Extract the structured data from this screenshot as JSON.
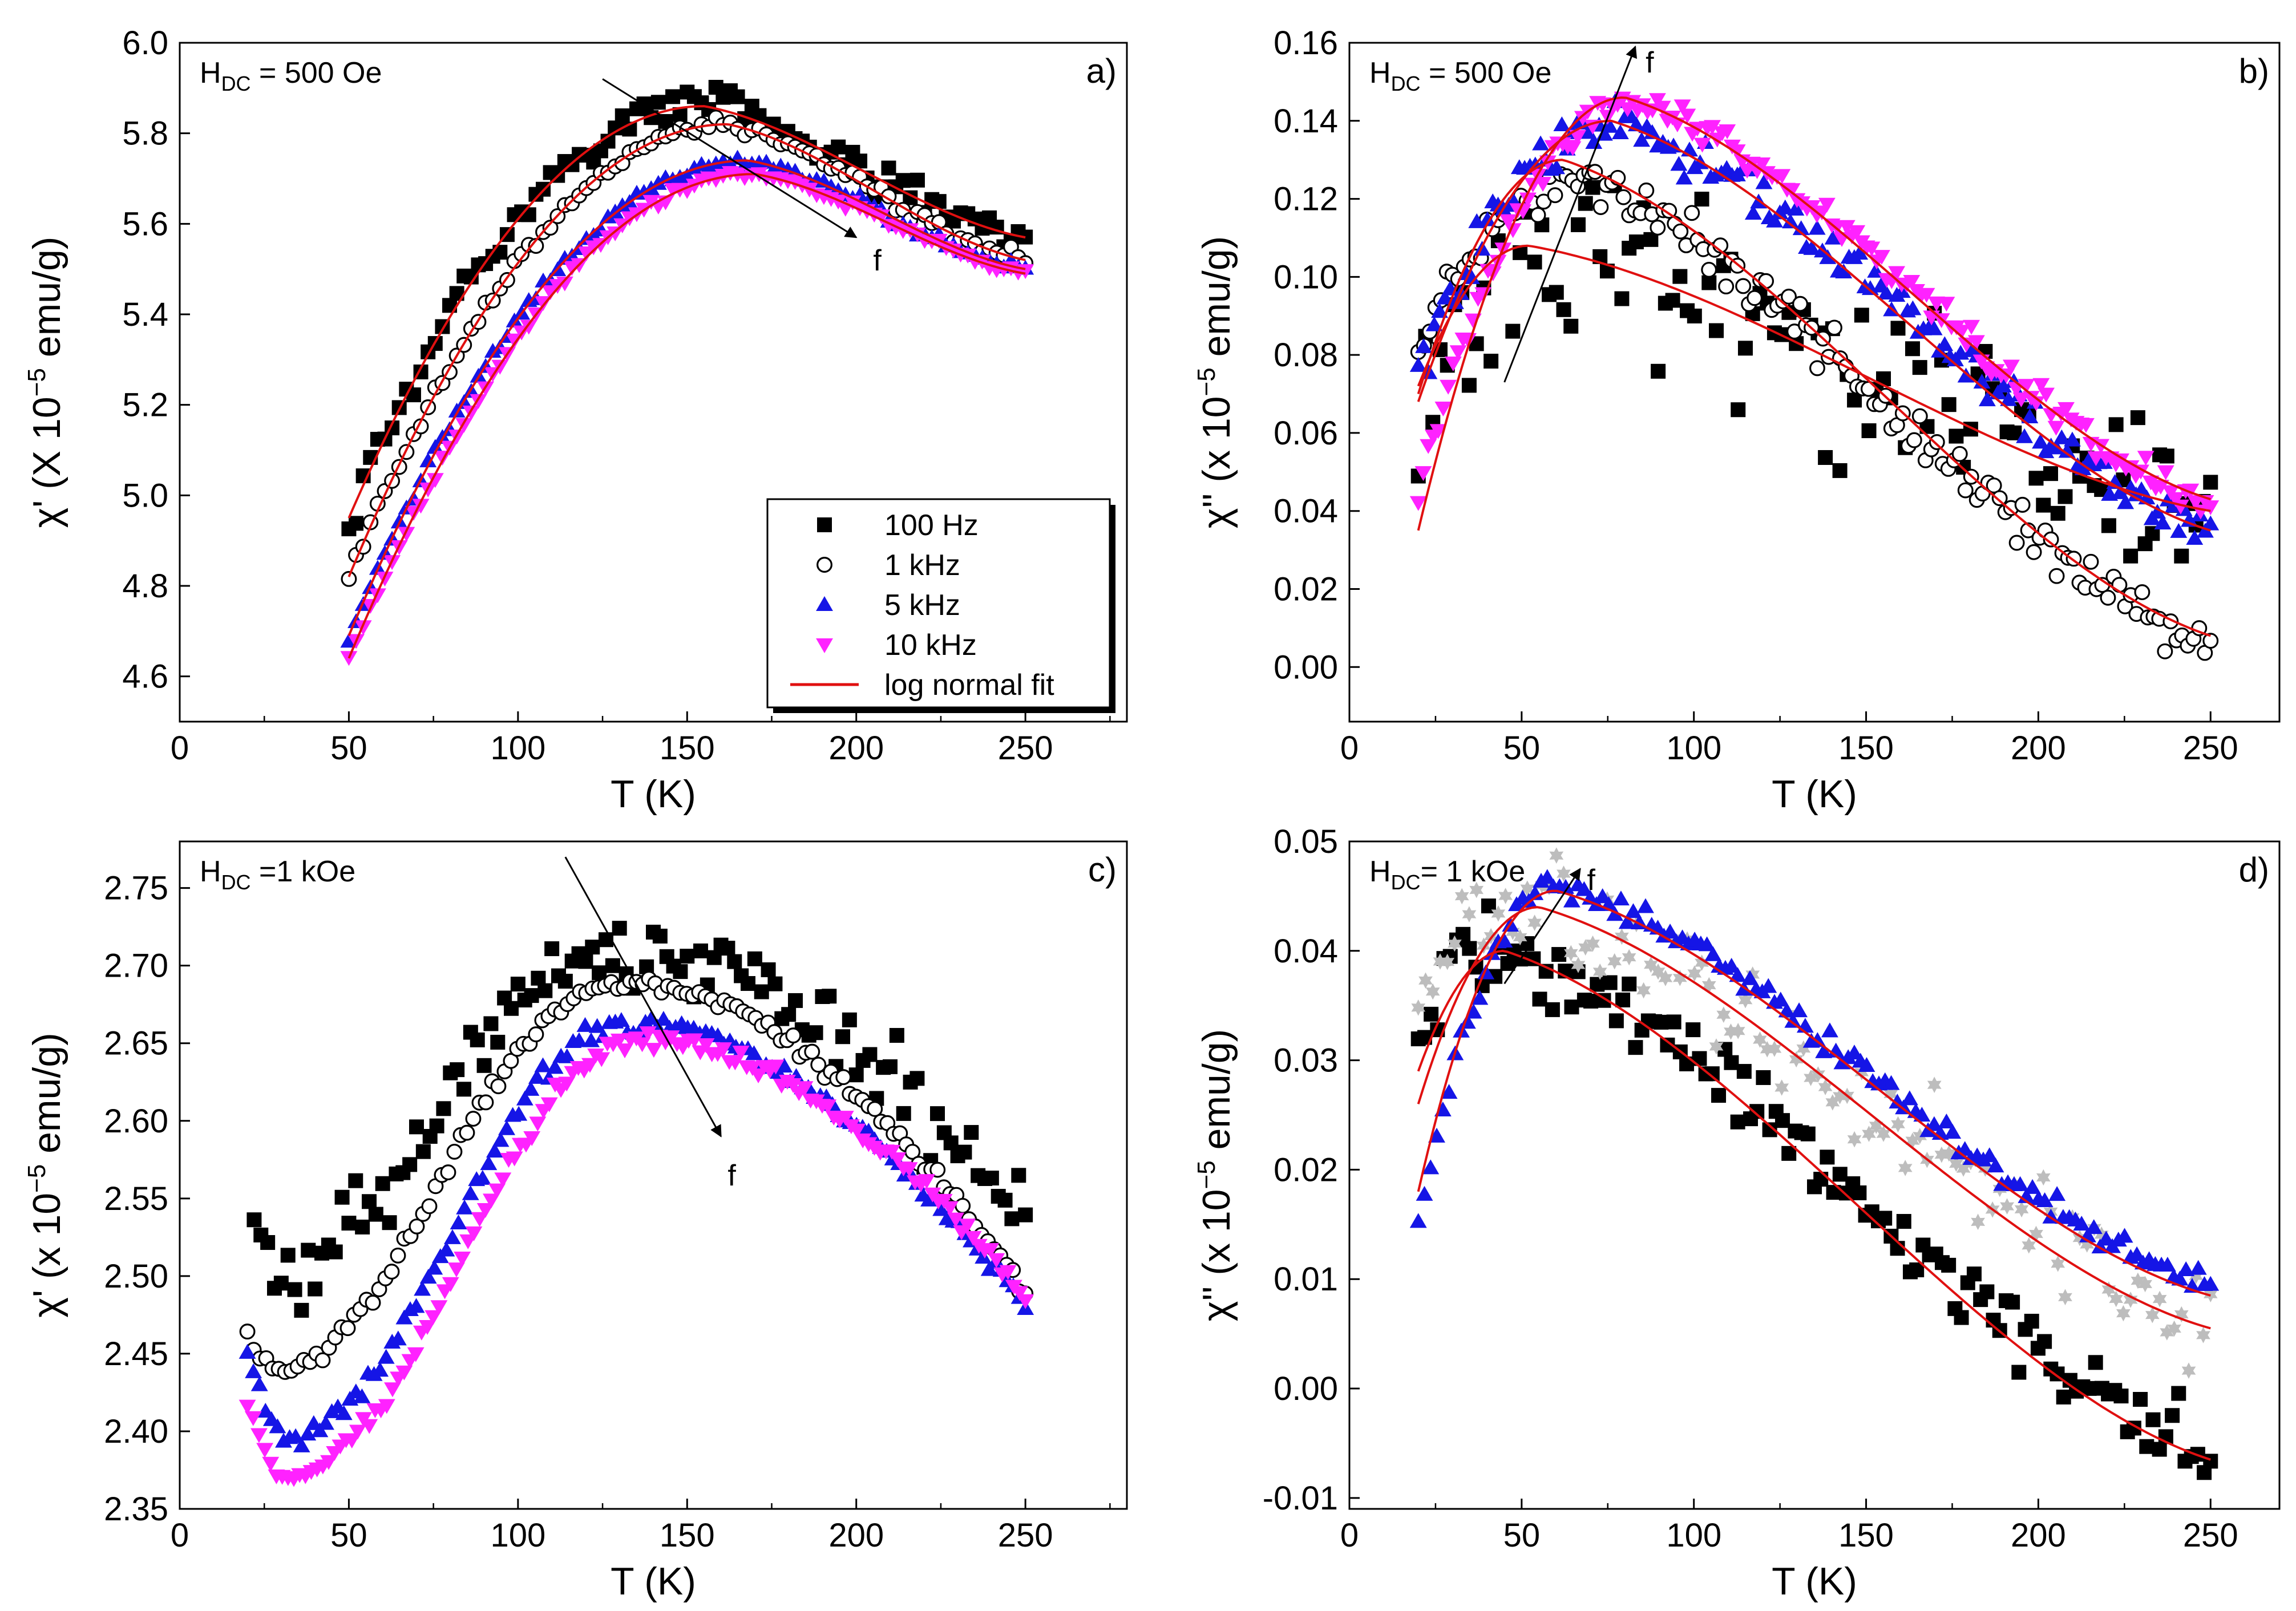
{
  "figure": {
    "description_free": true
  },
  "chart_data": [
    {
      "id": "a",
      "type": "scatter",
      "panel_label": "a)",
      "annotation": "H_DC = 500 Oe",
      "annotation_main": "H",
      "annotation_sub": "DC",
      "annotation_rest": " = 500 Oe",
      "xlabel": "T (K)",
      "ylabel": "χ' (X 10⁻⁵ emu/g)",
      "ylabel_main": "χ' (X 10",
      "ylabel_sup": "−5",
      "ylabel_rest": " emu/g)",
      "xlim": [
        0,
        280
      ],
      "ylim": [
        4.5,
        6.0
      ],
      "xticks": [
        0,
        50,
        100,
        150,
        200,
        250
      ],
      "yticks": [
        4.6,
        4.8,
        5.0,
        5.2,
        5.4,
        5.6,
        5.8,
        6.0
      ],
      "ytick_labels": [
        "4.6",
        "4.8",
        "5.0",
        "5.2",
        "5.4",
        "5.6",
        "5.8",
        "6.0"
      ],
      "arrow_label": "f",
      "arrow": {
        "from": [
          125,
          5.92
        ],
        "to": [
          200,
          5.57
        ],
        "label_at": [
          205,
          5.52
        ]
      },
      "legend": {
        "entries": [
          {
            "label": "100 Hz",
            "marker": "square",
            "color": "#000000"
          },
          {
            "label": "1 kHz",
            "marker": "circle-open",
            "color": "#000000"
          },
          {
            "label": "5 kHz",
            "marker": "triangle-up",
            "color": "#1515e6"
          },
          {
            "label": "10 kHz",
            "marker": "triangle-down",
            "color": "#ff22ff"
          },
          {
            "label": "log normal fit",
            "marker": "line",
            "color": "#e01010"
          }
        ]
      },
      "series": [
        {
          "name": "100 Hz",
          "marker": "square",
          "color": "#000000",
          "model": "peak",
          "x_range": [
            50,
            250
          ],
          "n": 95,
          "peak_x": 155,
          "peak_y": 5.86,
          "start_y": 4.95,
          "end_y": 5.57,
          "noise": 0.022
        },
        {
          "name": "1 kHz",
          "marker": "circle-open",
          "color": "#000000",
          "model": "peak",
          "x_range": [
            50,
            250
          ],
          "n": 95,
          "peak_x": 162,
          "peak_y": 5.82,
          "start_y": 4.82,
          "end_y": 5.52,
          "noise": 0.008
        },
        {
          "name": "5 kHz",
          "marker": "triangle-up",
          "color": "#1515e6",
          "model": "peak",
          "x_range": [
            50,
            250
          ],
          "n": 95,
          "peak_x": 168,
          "peak_y": 5.74,
          "start_y": 4.69,
          "end_y": 5.5,
          "noise": 0.006
        },
        {
          "name": "10 kHz",
          "marker": "triangle-down",
          "color": "#ff22ff",
          "model": "peak",
          "x_range": [
            50,
            250
          ],
          "n": 95,
          "peak_x": 170,
          "peak_y": 5.71,
          "start_y": 4.64,
          "end_y": 5.49,
          "noise": 0.005
        }
      ],
      "fits": [
        {
          "model": "peak",
          "x_range": [
            50,
            250
          ],
          "peak_x": 155,
          "peak_y": 5.86,
          "start_y": 4.95,
          "end_y": 5.57
        },
        {
          "model": "peak",
          "x_range": [
            50,
            250
          ],
          "peak_x": 162,
          "peak_y": 5.82,
          "start_y": 4.82,
          "end_y": 5.52
        },
        {
          "model": "peak",
          "x_range": [
            50,
            250
          ],
          "peak_x": 168,
          "peak_y": 5.74,
          "start_y": 4.69,
          "end_y": 5.5
        },
        {
          "model": "peak",
          "x_range": [
            50,
            250
          ],
          "peak_x": 170,
          "peak_y": 5.71,
          "start_y": 4.64,
          "end_y": 5.49
        }
      ]
    },
    {
      "id": "b",
      "type": "scatter",
      "panel_label": "b)",
      "annotation": "H_DC = 500 Oe",
      "annotation_main": "H",
      "annotation_sub": "DC",
      "annotation_rest": " = 500 Oe",
      "xlabel": "T (K)",
      "ylabel": "χ'' (x 10⁻⁵ emu/g)",
      "ylabel_main": "χ'' (x 10",
      "ylabel_sup": "−5",
      "ylabel_rest": " emu/g)",
      "xlim": [
        0,
        270
      ],
      "ylim": [
        -0.014,
        0.16
      ],
      "xticks": [
        0,
        50,
        100,
        150,
        200,
        250
      ],
      "yticks": [
        0.0,
        0.02,
        0.04,
        0.06,
        0.08,
        0.1,
        0.12,
        0.14,
        0.16
      ],
      "ytick_labels": [
        "0.00",
        "0.02",
        "0.04",
        "0.06",
        "0.08",
        "0.10",
        "0.12",
        "0.14",
        "0.16"
      ],
      "arrow_label": "f",
      "arrow": {
        "from": [
          45,
          0.073
        ],
        "to": [
          83,
          0.159
        ],
        "label_at": [
          86,
          0.155
        ]
      },
      "series": [
        {
          "name": "100 Hz",
          "marker": "square",
          "color": "#000000",
          "model": "peak",
          "x_range": [
            20,
            250
          ],
          "n": 110,
          "peak_x": 50,
          "peak_y": 0.107,
          "start_y": 0.06,
          "end_y": 0.045,
          "noise": 0.012
        },
        {
          "name": "1 kHz",
          "marker": "circle-open",
          "color": "#000000",
          "model": "peak",
          "x_range": [
            20,
            250
          ],
          "n": 140,
          "peak_x": 65,
          "peak_y": 0.126,
          "start_y": 0.082,
          "end_y": 0.006,
          "noise": 0.003
        },
        {
          "name": "5 kHz",
          "marker": "triangle-up",
          "color": "#1515e6",
          "model": "peak",
          "x_range": [
            20,
            250
          ],
          "n": 150,
          "peak_x": 78,
          "peak_y": 0.14,
          "start_y": 0.077,
          "end_y": 0.035,
          "noise": 0.003
        },
        {
          "name": "10 kHz",
          "marker": "triangle-down",
          "color": "#ff22ff",
          "model": "peak",
          "x_range": [
            20,
            250
          ],
          "n": 160,
          "peak_x": 82,
          "peak_y": 0.145,
          "start_y": 0.045,
          "end_y": 0.043,
          "noise": 0.002
        }
      ],
      "fits": [
        {
          "model": "peak",
          "x_range": [
            20,
            250
          ],
          "peak_x": 52,
          "peak_y": 0.108,
          "start_y": 0.072,
          "end_y": 0.04
        },
        {
          "model": "peak",
          "x_range": [
            20,
            250
          ],
          "peak_x": 62,
          "peak_y": 0.13,
          "start_y": 0.07,
          "end_y": 0.008
        },
        {
          "model": "peak",
          "x_range": [
            20,
            250
          ],
          "peak_x": 76,
          "peak_y": 0.14,
          "start_y": 0.068,
          "end_y": 0.035
        },
        {
          "model": "peak",
          "x_range": [
            20,
            250
          ],
          "peak_x": 80,
          "peak_y": 0.146,
          "start_y": 0.035,
          "end_y": 0.043
        }
      ]
    },
    {
      "id": "c",
      "type": "scatter",
      "panel_label": "c)",
      "annotation": "H_DC =1 kOe",
      "annotation_main": "H",
      "annotation_sub": "DC",
      "annotation_rest": " =1 kOe",
      "xlabel": "T (K)",
      "ylabel": "χ' (x 10⁻⁵ emu/g)",
      "ylabel_main": "χ' (x 10",
      "ylabel_sup": "−5",
      "ylabel_rest": " emu/g)",
      "xlim": [
        0,
        280
      ],
      "ylim": [
        2.35,
        2.78
      ],
      "xticks": [
        0,
        50,
        100,
        150,
        200,
        250
      ],
      "yticks": [
        2.35,
        2.4,
        2.45,
        2.5,
        2.55,
        2.6,
        2.65,
        2.7,
        2.75
      ],
      "ytick_labels": [
        "2.35",
        "2.40",
        "2.45",
        "2.50",
        "2.55",
        "2.60",
        "2.65",
        "2.70",
        "2.75"
      ],
      "arrow_label": "f",
      "arrow": {
        "from": [
          114,
          2.77
        ],
        "to": [
          160,
          2.59
        ],
        "label_at": [
          162,
          2.565
        ]
      },
      "series": [
        {
          "name": "100 Hz",
          "marker": "square",
          "color": "#000000",
          "model": "dippeak",
          "x_range": [
            22,
            250
          ],
          "n": 115,
          "dip_x": 28,
          "dip_y": 2.5,
          "peak_x": 125,
          "peak_y": 2.71,
          "start_y": 2.52,
          "end_y": 2.53,
          "noise": 0.013
        },
        {
          "name": "1 kHz",
          "marker": "circle-open",
          "color": "#000000",
          "model": "dippeak",
          "x_range": [
            20,
            250
          ],
          "n": 125,
          "dip_x": 28,
          "dip_y": 2.44,
          "peak_x": 128,
          "peak_y": 2.69,
          "start_y": 2.465,
          "end_y": 2.49,
          "noise": 0.003
        },
        {
          "name": "5 kHz",
          "marker": "triangle-up",
          "color": "#1515e6",
          "model": "dippeak",
          "x_range": [
            20,
            250
          ],
          "n": 130,
          "dip_x": 32,
          "dip_y": 2.395,
          "peak_x": 130,
          "peak_y": 2.663,
          "start_y": 2.45,
          "end_y": 2.48,
          "noise": 0.003
        },
        {
          "name": "10 kHz",
          "marker": "triangle-down",
          "color": "#ff22ff",
          "model": "dippeak",
          "x_range": [
            20,
            250
          ],
          "n": 135,
          "dip_x": 32,
          "dip_y": 2.372,
          "peak_x": 135,
          "peak_y": 2.652,
          "start_y": 2.42,
          "end_y": 2.486,
          "noise": 0.003
        }
      ],
      "fits": []
    },
    {
      "id": "d",
      "type": "scatter",
      "panel_label": "d)",
      "annotation": "H_DC= 1 kOe",
      "annotation_main": "H",
      "annotation_sub": "DC",
      "annotation_rest": "= 1 kOe",
      "xlabel": "T (K)",
      "ylabel": "χ'' (x 10⁻⁵ emu/g)",
      "ylabel_main": "χ'' (x 10",
      "ylabel_sup": "−5",
      "ylabel_rest": " emu/g)",
      "xlim": [
        0,
        270
      ],
      "ylim": [
        -0.011,
        0.05
      ],
      "xticks": [
        0,
        50,
        100,
        150,
        200,
        250
      ],
      "yticks": [
        -0.01,
        0.0,
        0.01,
        0.02,
        0.03,
        0.04,
        0.05
      ],
      "ytick_labels": [
        "-0.01",
        "0.00",
        "0.01",
        "0.02",
        "0.03",
        "0.04",
        "0.05"
      ],
      "arrow_label": "f",
      "arrow": {
        "from": [
          45,
          0.037
        ],
        "to": [
          67,
          0.0475
        ],
        "label_at": [
          69,
          0.0465
        ]
      },
      "series": [
        {
          "name": "100 Hz",
          "marker": "square",
          "color": "#000000",
          "model": "peak",
          "x_range": [
            20,
            250
          ],
          "n": 125,
          "peak_x": 48,
          "peak_y": 0.04,
          "start_y": 0.033,
          "end_y": -0.006,
          "noise": 0.0018
        },
        {
          "name": "1 kHz",
          "marker": "star",
          "color": "#bdbdbd",
          "model": "peak",
          "x_range": [
            20,
            250
          ],
          "n": 110,
          "peak_x": 58,
          "peak_y": 0.044,
          "start_y": 0.035,
          "end_y": 0.006,
          "noise": 0.0025
        },
        {
          "name": "5 kHz",
          "marker": "triangle-up",
          "color": "#1515e6",
          "model": "peak",
          "x_range": [
            20,
            250
          ],
          "n": 130,
          "peak_x": 60,
          "peak_y": 0.046,
          "start_y": 0.015,
          "end_y": 0.0095,
          "noise": 0.0006
        }
      ],
      "fits": [
        {
          "model": "peak",
          "x_range": [
            20,
            250
          ],
          "peak_x": 45,
          "peak_y": 0.04,
          "start_y": 0.029,
          "end_y": -0.0065
        },
        {
          "model": "peak",
          "x_range": [
            20,
            250
          ],
          "peak_x": 55,
          "peak_y": 0.044,
          "start_y": 0.026,
          "end_y": 0.0055
        },
        {
          "model": "peak",
          "x_range": [
            20,
            250
          ],
          "peak_x": 60,
          "peak_y": 0.0455,
          "start_y": 0.018,
          "end_y": 0.0085
        }
      ]
    }
  ]
}
